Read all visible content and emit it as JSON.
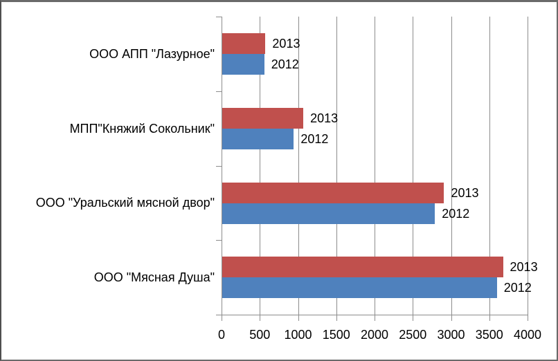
{
  "window": {
    "background": "#FFFFFF",
    "frame_border_color": "#6A6A6A"
  },
  "chart_data": {
    "type": "bar",
    "orientation": "horizontal",
    "title": "",
    "categories": [
      "ООО АПП \"Лазурное\"",
      "МПП\"Княжий Сокольник\"",
      "ООО \"Уральский мясной двор\"",
      "ООО \"Мясная Душа\""
    ],
    "series": [
      {
        "name": "2013",
        "color": "#C0504D",
        "values": [
          565,
          1060,
          2900,
          3670
        ]
      },
      {
        "name": "2012",
        "color": "#4F81BD",
        "values": [
          550,
          935,
          2780,
          3590
        ]
      }
    ],
    "xlabel": "",
    "ylabel": "",
    "xlim": [
      0,
      4000
    ],
    "xticks": [
      0,
      500,
      1000,
      1500,
      2000,
      2500,
      3000,
      3500,
      4000
    ],
    "grid": true,
    "legend_position": "none",
    "data_labels": "series name at end of each bar",
    "gridline_color": "#8C8C8C",
    "axis_color": "#8C8C8C",
    "text_color": "#000000"
  }
}
